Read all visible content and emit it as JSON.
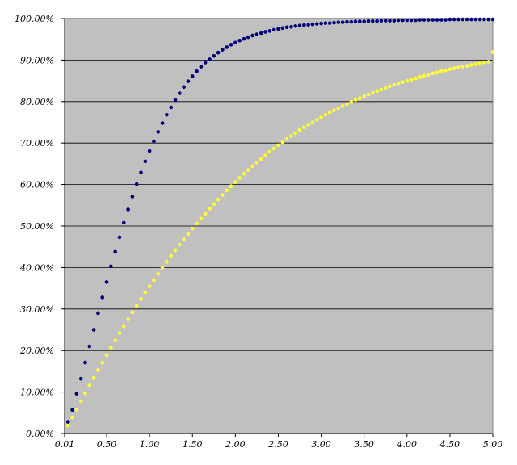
{
  "chart_data": {
    "type": "scatter",
    "title": "",
    "xlabel": "",
    "ylabel": "",
    "xlim": [
      0.01,
      5.0
    ],
    "ylim": [
      0,
      100
    ],
    "grid": "horizontal",
    "legend": "none",
    "plot_background": "#c0c0c0",
    "x_tick_labels": [
      "0.01",
      "0.50",
      "1.00",
      "1.50",
      "2.00",
      "2.50",
      "3.00",
      "3.50",
      "4.00",
      "4.50",
      "5.00"
    ],
    "x_tick_values": [
      0.01,
      0.5,
      1.0,
      1.5,
      2.0,
      2.5,
      3.0,
      3.5,
      4.0,
      4.5,
      5.0
    ],
    "y_tick_labels": [
      "0.00%",
      "10.00%",
      "20.00%",
      "30.00%",
      "40.00%",
      "50.00%",
      "60.00%",
      "70.00%",
      "80.00%",
      "90.00%",
      "100.00%"
    ],
    "y_tick_values": [
      0,
      10,
      20,
      30,
      40,
      50,
      60,
      70,
      80,
      90,
      100
    ],
    "series": [
      {
        "color": "#00007a",
        "x": [
          0.05,
          0.1,
          0.15,
          0.2,
          0.25,
          0.3,
          0.35,
          0.4,
          0.45,
          0.5,
          0.55,
          0.6,
          0.65,
          0.7,
          0.75,
          0.8,
          0.85,
          0.9,
          0.95,
          1.0,
          1.05,
          1.1,
          1.15,
          1.2,
          1.25,
          1.3,
          1.35,
          1.4,
          1.45,
          1.5,
          1.55,
          1.6,
          1.65,
          1.7,
          1.75,
          1.8,
          1.85,
          1.9,
          1.95,
          2.0,
          2.05,
          2.1,
          2.15,
          2.2,
          2.25,
          2.3,
          2.35,
          2.4,
          2.45,
          2.5,
          2.55,
          2.6,
          2.65,
          2.7,
          2.75,
          2.8,
          2.85,
          2.9,
          2.95,
          3.0,
          3.05,
          3.1,
          3.15,
          3.2,
          3.25,
          3.3,
          3.35,
          3.4,
          3.45,
          3.5,
          3.55,
          3.6,
          3.65,
          3.7,
          3.75,
          3.8,
          3.85,
          3.9,
          3.95,
          4.0,
          4.05,
          4.1,
          4.15,
          4.2,
          4.25,
          4.3,
          4.35,
          4.4,
          4.45,
          4.5,
          4.55,
          4.6,
          4.65,
          4.7,
          4.75,
          4.8,
          4.85,
          4.9,
          4.95,
          5.0
        ],
        "y": [
          2.8,
          5.7,
          9.6,
          13.2,
          17.1,
          21.0,
          25.0,
          29.0,
          32.8,
          36.5,
          40.3,
          43.8,
          47.3,
          50.8,
          54.0,
          57.1,
          60.1,
          62.9,
          65.6,
          68.1,
          70.4,
          72.7,
          74.8,
          76.8,
          78.6,
          80.4,
          82.0,
          83.5,
          84.9,
          86.1,
          87.3,
          88.4,
          89.4,
          90.2,
          91.0,
          91.8,
          92.5,
          93.1,
          93.7,
          94.2,
          94.7,
          95.1,
          95.5,
          95.9,
          96.2,
          96.5,
          96.8,
          97.0,
          97.3,
          97.5,
          97.7,
          97.9,
          98.0,
          98.2,
          98.3,
          98.4,
          98.5,
          98.6,
          98.7,
          98.8,
          98.9,
          98.9,
          99.0,
          99.1,
          99.1,
          99.2,
          99.2,
          99.3,
          99.3,
          99.3,
          99.4,
          99.4,
          99.4,
          99.5,
          99.5,
          99.5,
          99.5,
          99.6,
          99.6,
          99.6,
          99.6,
          99.6,
          99.7,
          99.7,
          99.7,
          99.7,
          99.7,
          99.7,
          99.7,
          99.8,
          99.8,
          99.8,
          99.8,
          99.8,
          99.8,
          99.8,
          99.8,
          99.8,
          99.8,
          99.8
        ]
      },
      {
        "color": "#ffff33",
        "x": [
          0.05,
          0.1,
          0.15,
          0.2,
          0.25,
          0.3,
          0.35,
          0.4,
          0.45,
          0.5,
          0.55,
          0.6,
          0.65,
          0.7,
          0.75,
          0.8,
          0.85,
          0.9,
          0.95,
          1.0,
          1.05,
          1.1,
          1.15,
          1.2,
          1.25,
          1.3,
          1.35,
          1.4,
          1.45,
          1.5,
          1.55,
          1.6,
          1.65,
          1.7,
          1.75,
          1.8,
          1.85,
          1.9,
          1.95,
          2.0,
          2.05,
          2.1,
          2.15,
          2.2,
          2.25,
          2.3,
          2.35,
          2.4,
          2.45,
          2.5,
          2.55,
          2.6,
          2.65,
          2.7,
          2.75,
          2.8,
          2.85,
          2.9,
          2.95,
          3.0,
          3.05,
          3.1,
          3.15,
          3.2,
          3.25,
          3.3,
          3.35,
          3.4,
          3.45,
          3.5,
          3.55,
          3.6,
          3.65,
          3.7,
          3.75,
          3.8,
          3.85,
          3.9,
          3.95,
          4.0,
          4.05,
          4.1,
          4.15,
          4.2,
          4.25,
          4.3,
          4.35,
          4.4,
          4.45,
          4.5,
          4.55,
          4.6,
          4.65,
          4.7,
          4.75,
          4.8,
          4.85,
          4.9,
          4.95,
          5.0
        ],
        "y": [
          1.9,
          3.9,
          5.8,
          7.8,
          9.7,
          11.6,
          13.4,
          15.3,
          17.1,
          18.9,
          20.7,
          22.4,
          24.2,
          25.9,
          27.5,
          29.2,
          30.8,
          32.4,
          34.0,
          35.5,
          37.0,
          38.5,
          40.0,
          41.4,
          42.8,
          44.2,
          45.5,
          46.8,
          48.1,
          49.4,
          50.6,
          51.8,
          53.0,
          54.2,
          55.3,
          56.4,
          57.5,
          58.6,
          59.6,
          60.6,
          61.6,
          62.6,
          63.5,
          64.4,
          65.3,
          66.2,
          67.0,
          67.9,
          68.7,
          69.5,
          70.2,
          71.0,
          71.7,
          72.4,
          73.1,
          73.8,
          74.4,
          75.0,
          75.6,
          76.2,
          76.8,
          77.4,
          77.9,
          78.4,
          78.9,
          79.4,
          79.9,
          80.4,
          80.8,
          81.3,
          81.7,
          82.1,
          82.5,
          82.9,
          83.3,
          83.7,
          84.0,
          84.4,
          84.7,
          85.0,
          85.3,
          85.6,
          85.9,
          86.2,
          86.5,
          86.8,
          87.0,
          87.3,
          87.5,
          87.8,
          88.0,
          88.2,
          88.4,
          88.6,
          88.8,
          89.0,
          89.2,
          89.4,
          89.6,
          91.9
        ]
      }
    ]
  }
}
